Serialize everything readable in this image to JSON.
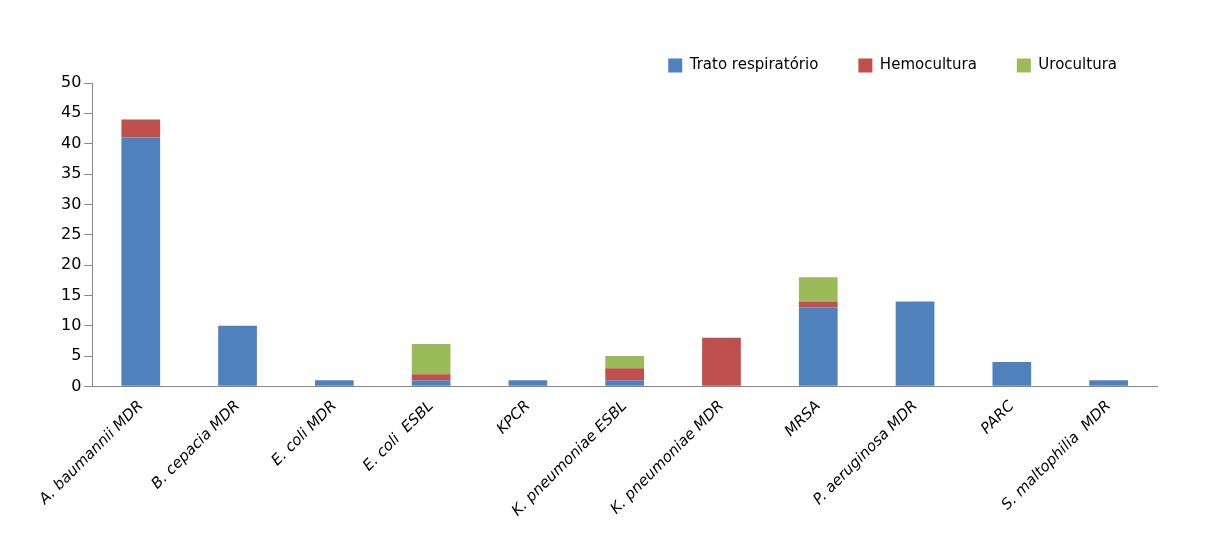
{
  "chart_data": {
    "type": "bar",
    "stacked": true,
    "categories": [
      "A. baumannii MDR",
      "B. cepacia MDR",
      "E. coli MDR",
      "E. coli  ESBL",
      "KPCR",
      "K. pneumoniae ESBL",
      "K. pneumoniae MDR",
      "MRSA",
      "P. aeruginosa MDR",
      "PARC",
      "S. maltophilia  MDR"
    ],
    "series": [
      {
        "name": "Trato respiratório",
        "color": "#4f81bd",
        "values": [
          41,
          10,
          1,
          1,
          1,
          1,
          0,
          13,
          14,
          4,
          1
        ]
      },
      {
        "name": "Hemocultura",
        "color": "#c0504d",
        "values": [
          3,
          0,
          0,
          1,
          0,
          2,
          8,
          1,
          0,
          0,
          0
        ]
      },
      {
        "name": "Urocultura",
        "color": "#9bbb59",
        "values": [
          0,
          0,
          0,
          5,
          0,
          2,
          0,
          4,
          0,
          0,
          0
        ]
      }
    ],
    "ylim": [
      0,
      50
    ],
    "yticks": [
      0,
      5,
      10,
      15,
      20,
      25,
      30,
      35,
      40,
      45,
      50
    ],
    "grid": false,
    "legend": "top right"
  }
}
